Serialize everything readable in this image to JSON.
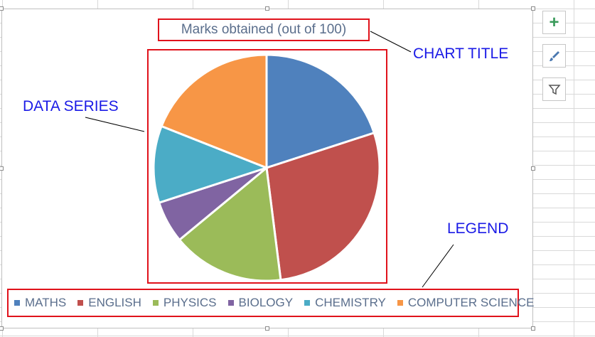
{
  "chart_data": {
    "type": "pie",
    "title": "Marks obtained (out of 100)",
    "categories": [
      "MATHS",
      "ENGLISH",
      "PHYSICS",
      "BIOLOGY",
      "CHEMISTRY",
      "COMPUTER SCIENCE"
    ],
    "values": [
      20,
      28,
      16,
      6,
      11,
      19
    ],
    "colors": [
      "#4f81bd",
      "#c0504d",
      "#9bbb59",
      "#8064a2",
      "#4bacc6",
      "#f79646"
    ],
    "legend_position": "bottom"
  },
  "annotations": {
    "chart_title": "CHART TITLE",
    "data_series": "DATA SERIES",
    "legend": "LEGEND"
  },
  "side_buttons": [
    {
      "icon": "plus-icon",
      "glyph": "+"
    },
    {
      "icon": "brush-icon",
      "glyph": "✎"
    },
    {
      "icon": "filter-icon",
      "glyph": "▼"
    }
  ]
}
